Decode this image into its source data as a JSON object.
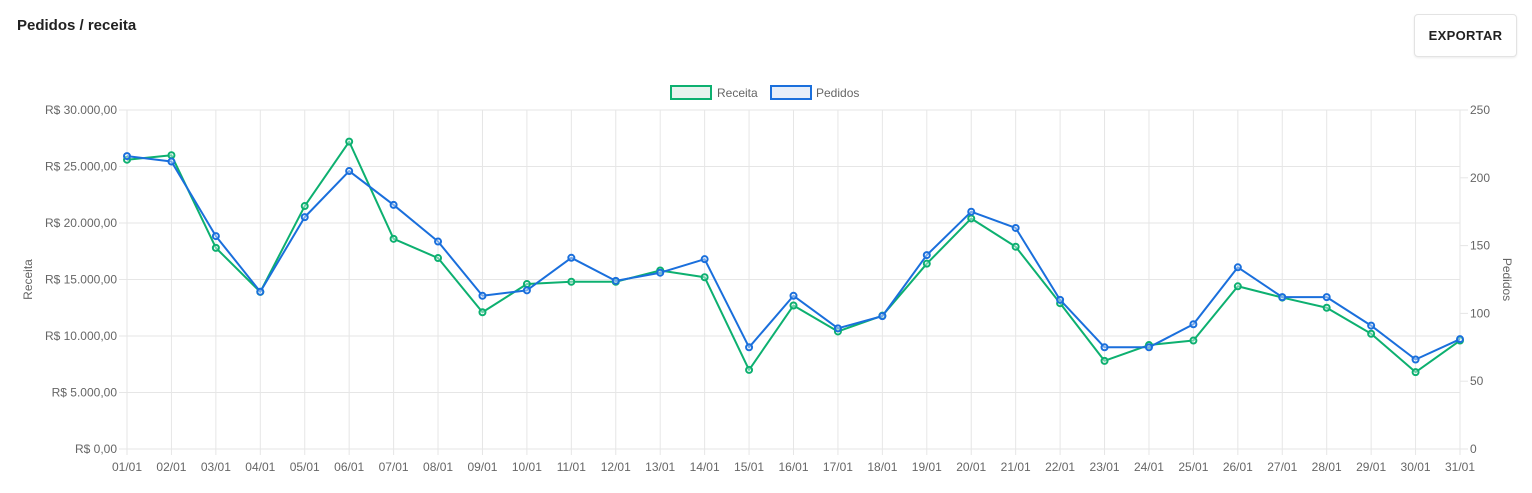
{
  "header": {
    "title": "Pedidos / receita",
    "export_label": "EXPORTAR"
  },
  "chart_data": {
    "type": "line",
    "categories": [
      "01/01",
      "02/01",
      "03/01",
      "04/01",
      "05/01",
      "06/01",
      "07/01",
      "08/01",
      "09/01",
      "10/01",
      "11/01",
      "12/01",
      "13/01",
      "14/01",
      "15/01",
      "16/01",
      "17/01",
      "18/01",
      "19/01",
      "20/01",
      "21/01",
      "22/01",
      "23/01",
      "24/01",
      "25/01",
      "26/01",
      "27/01",
      "28/01",
      "29/01",
      "30/01",
      "31/01"
    ],
    "series": [
      {
        "name": "Receita",
        "axis": "left",
        "color": "#0db070",
        "values": [
          25600,
          26000,
          17800,
          13900,
          21500,
          27200,
          18600,
          16900,
          12100,
          14600,
          14800,
          14800,
          15800,
          15200,
          7000,
          12700,
          10400,
          11800,
          16400,
          20400,
          17900,
          12900,
          7800,
          9200,
          9600,
          14400,
          13400,
          12500,
          10200,
          6800,
          9600
        ]
      },
      {
        "name": "Pedidos",
        "axis": "right",
        "color": "#1a6fdc",
        "values": [
          216,
          212,
          157,
          116,
          171,
          205,
          180,
          153,
          113,
          117,
          141,
          124,
          130,
          140,
          75,
          113,
          89,
          98,
          143,
          175,
          163,
          110,
          75,
          75,
          92,
          134,
          112,
          112,
          91,
          66,
          81
        ]
      }
    ],
    "left_axis": {
      "label": "Receita",
      "range": [
        0,
        30000
      ],
      "ticks": [
        "R$ 0,00",
        "R$ 5.000,00",
        "R$ 10.000,00",
        "R$ 15.000,00",
        "R$ 20.000,00",
        "R$ 25.000,00",
        "R$ 30.000,00"
      ]
    },
    "right_axis": {
      "label": "Pedidos",
      "range": [
        0,
        250
      ],
      "ticks": [
        "0",
        "50",
        "100",
        "150",
        "200",
        "250"
      ]
    },
    "grid": true,
    "legend_position": "top-center",
    "colors": {
      "grid": "#e6e6e6",
      "tick_text": "#666666",
      "receita_fill": "#e8f3ee",
      "pedidos_fill": "#e6eef9"
    }
  }
}
